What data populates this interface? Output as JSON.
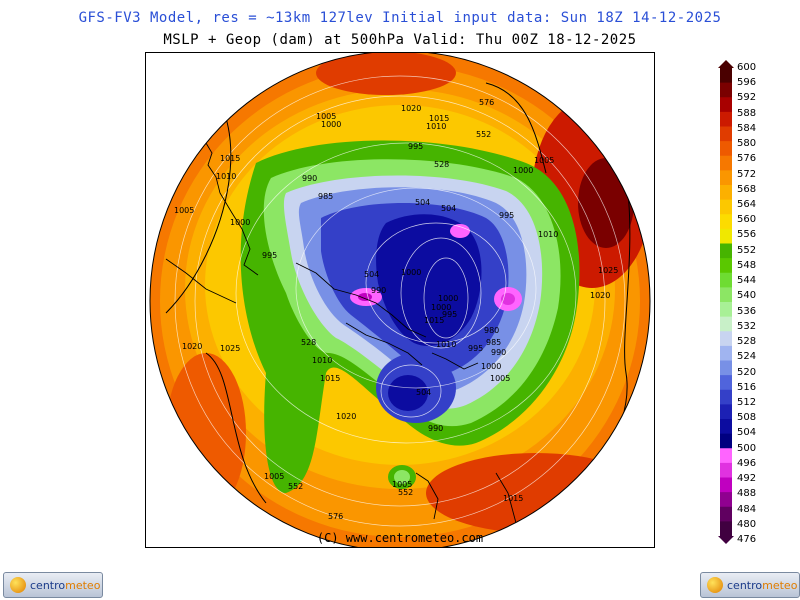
{
  "header": {
    "line1": "GFS-FV3 Model, res = ~13km 127lev    Initial input data: Sun 18Z 14-12-2025",
    "line2": "MSLP + Geop (dam) at 500hPa  Valid: Thu 00Z 18-12-2025"
  },
  "map": {
    "copyright": "(C) www.centrometeo.com",
    "pressure_labels": [
      "1020",
      "1015",
      "1010",
      "1005",
      "1000",
      "995",
      "990",
      "985",
      "980",
      "1025"
    ],
    "geopotential_labels": [
      "576",
      "552",
      "528",
      "504"
    ]
  },
  "colorbar": {
    "labels": [
      "600",
      "596",
      "592",
      "588",
      "584",
      "580",
      "576",
      "572",
      "568",
      "564",
      "560",
      "556",
      "552",
      "548",
      "544",
      "540",
      "536",
      "532",
      "528",
      "524",
      "520",
      "516",
      "512",
      "508",
      "504",
      "500",
      "496",
      "492",
      "488",
      "484",
      "480",
      "476"
    ],
    "colors": [
      "#4a0000",
      "#7a0000",
      "#a80000",
      "#cc1a00",
      "#e03c00",
      "#ee5a00",
      "#f67800",
      "#fa9600",
      "#fcb000",
      "#fcc800",
      "#fcdc00",
      "#f0e800",
      "#46b400",
      "#5ac800",
      "#6edc32",
      "#8ce664",
      "#a8f096",
      "#c8f0c8",
      "#c8d4f0",
      "#a0b4f0",
      "#7890e6",
      "#5064dc",
      "#3440c8",
      "#1c20b4",
      "#0c0ca0",
      "#000080",
      "#ff64ff",
      "#e032e0",
      "#c000c0",
      "#900090",
      "#600060",
      "#400040"
    ]
  },
  "logos": {
    "left_text_main": "centro",
    "left_text_accent": "meteo",
    "right_text_main": "centro",
    "right_text_accent": "meteo"
  }
}
